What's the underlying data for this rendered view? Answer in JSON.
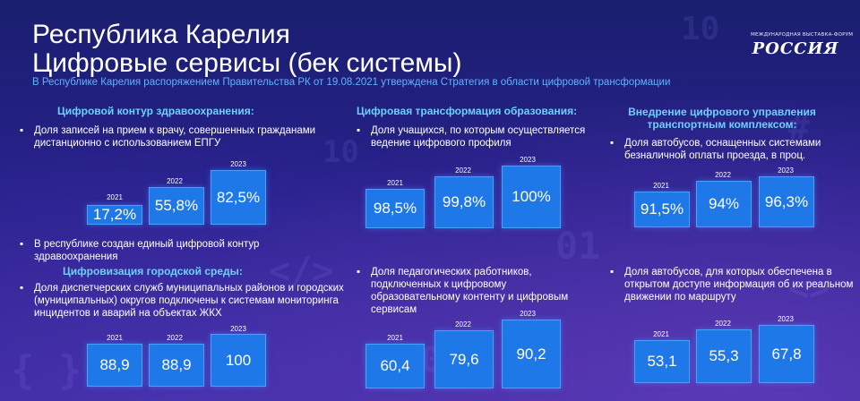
{
  "title": {
    "line1": "Республика Карелия",
    "line2": "Цифровые сервисы (бек системы)"
  },
  "subtitle": "В Республике Карелия распоряжением Правительства РК от 19.08.2021 утверждена Стратегия в области цифровой трансформации",
  "logo": {
    "top_text": "МЕЖДУНАРОДНАЯ ВЫСТАВКА-ФОРУМ",
    "main_text": "РОССИЯ"
  },
  "colors": {
    "heading": "#6fd0ff",
    "subtitle": "#5fb4ff",
    "bar": "#1f78e8",
    "background": "#26208a"
  },
  "sections": {
    "health": {
      "heading": "Цифровой контур здравоохранения:",
      "bullet1": "Доля записей на прием к врачу, совершенных гражданами дистанционно с использованием ЕПГУ",
      "bullet2": "В республике создан единый цифровой контур здравоохранения"
    },
    "urban": {
      "heading": "Цифровизация городской среды:",
      "bullet1": "Доля диспетчерских служб муниципальных районов и городских (муниципальных) округов подключены к системам мониторинга инцидентов и аварий на объектах ЖКХ"
    },
    "education": {
      "heading": "Цифровая трансформация образования:",
      "bullet1": "Доля учащихся, по которым осуществляется ведение цифрового профиля",
      "bullet2": "Доля педагогических работников, подключенных к цифровому образовательному контенту и цифровым сервисам"
    },
    "transport": {
      "heading_line1": "Внедрение цифрового управления",
      "heading_line2": "транспортным комплексом:",
      "bullet1": "Доля автобусов, оснащенных системами безналичной оплаты проезда, в проц.",
      "bullet2": "Доля автобусов, для которых обеспечена в открытом доступе информация об их реальном движении по маршруту"
    }
  },
  "chart_data": [
    {
      "type": "bar",
      "id": "health",
      "categories": [
        "2021",
        "2022",
        "2023"
      ],
      "values": [
        17.2,
        55.8,
        82.5
      ],
      "labels": [
        "17,2%",
        "55,8%",
        "82,5%"
      ]
    },
    {
      "type": "bar",
      "id": "urban",
      "categories": [
        "2021",
        "2022",
        "2023"
      ],
      "values": [
        88.9,
        88.9,
        100
      ],
      "labels": [
        "88,9",
        "88,9",
        "100"
      ]
    },
    {
      "type": "bar",
      "id": "edu1",
      "categories": [
        "2021",
        "2022",
        "2023"
      ],
      "values": [
        98.5,
        99.8,
        100
      ],
      "labels": [
        "98,5%",
        "99,8%",
        "100%"
      ]
    },
    {
      "type": "bar",
      "id": "edu2",
      "categories": [
        "2021",
        "2022",
        "2023"
      ],
      "values": [
        60.4,
        79.6,
        90.2
      ],
      "labels": [
        "60,4",
        "79,6",
        "90,2"
      ]
    },
    {
      "type": "bar",
      "id": "trans1",
      "categories": [
        "2021",
        "2022",
        "2023"
      ],
      "values": [
        91.5,
        94,
        96.3
      ],
      "labels": [
        "91,5%",
        "94%",
        "96,3%"
      ]
    },
    {
      "type": "bar",
      "id": "trans2",
      "categories": [
        "2021",
        "2022",
        "2023"
      ],
      "values": [
        53.1,
        55.3,
        67.8
      ],
      "labels": [
        "53,1",
        "55,3",
        "67,8"
      ]
    }
  ]
}
